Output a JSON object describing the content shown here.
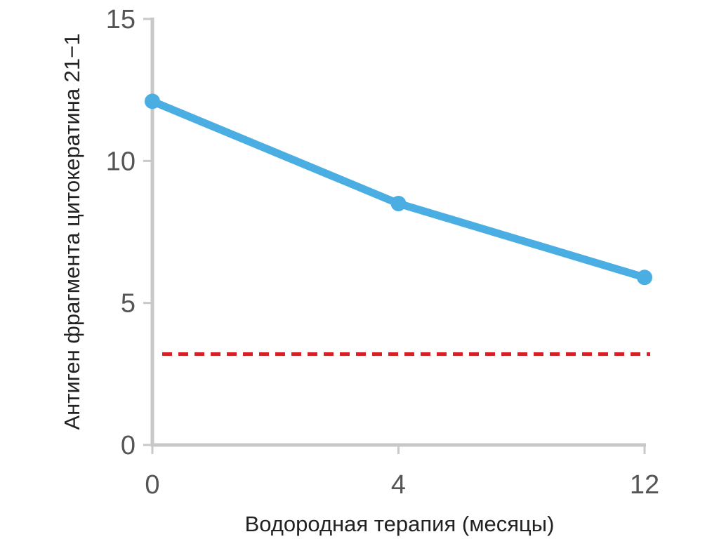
{
  "chart_data": {
    "type": "line",
    "title": "",
    "xlabel": "Водородная терапия (месяцы)",
    "ylabel": "Антиген фрагмента цитокератина 21−1",
    "x": [
      "0",
      "4",
      "12"
    ],
    "xlim": [
      "0",
      "12"
    ],
    "ylim": [
      0,
      15
    ],
    "yticks": [
      "0",
      "5",
      "10",
      "15"
    ],
    "series": [
      {
        "values": [
          12.1,
          8.5,
          5.9
        ]
      }
    ],
    "reference_line": {
      "value": 3.2,
      "style": "dashed"
    },
    "grid": false,
    "legend": "none"
  },
  "colors": {
    "series": "#4aaee3",
    "reference": "#d42027",
    "axis": "#c8c8c8"
  }
}
